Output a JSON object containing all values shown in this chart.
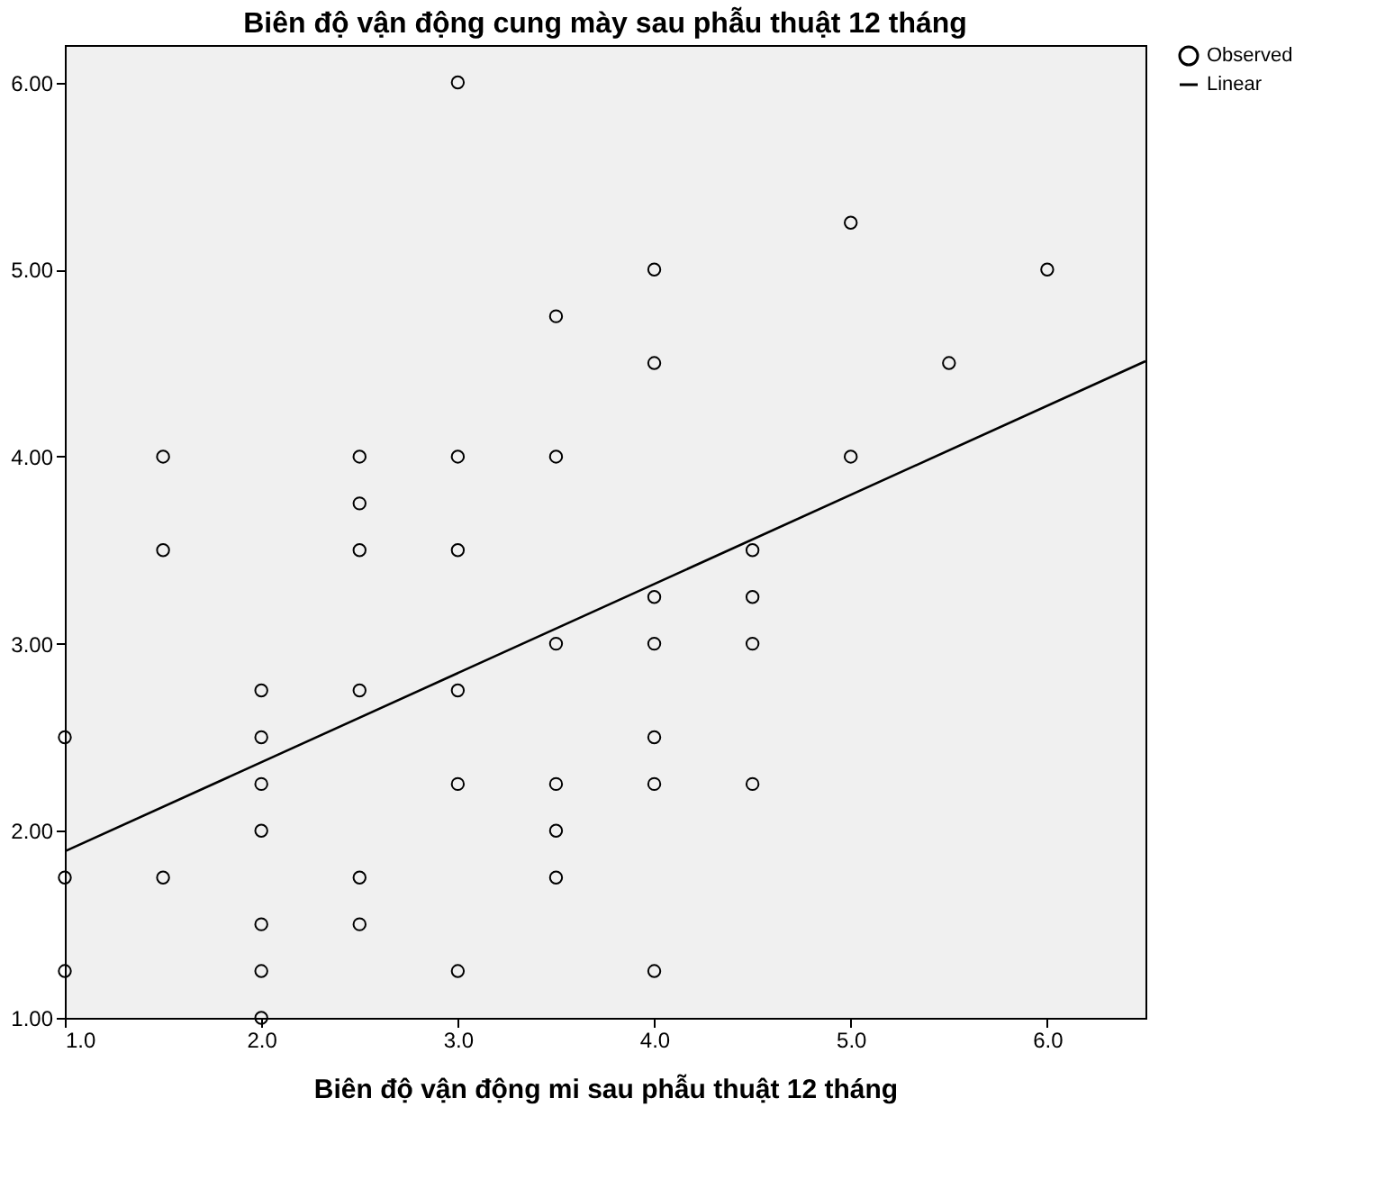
{
  "chart_data": {
    "type": "scatter",
    "title": "Biên độ vận động cung mày sau phẫu thuật 12 tháng",
    "xlabel": "Biên độ vận động mi sau phẫu thuật 12 tháng",
    "xlim": [
      1.0,
      6.5
    ],
    "ylim": [
      1.0,
      6.2
    ],
    "xticks": [
      {
        "value": 1,
        "label": "1.0"
      },
      {
        "value": 2,
        "label": "2.0"
      },
      {
        "value": 3,
        "label": "3.0"
      },
      {
        "value": 4,
        "label": "4.0"
      },
      {
        "value": 5,
        "label": "5.0"
      },
      {
        "value": 6,
        "label": "6.0"
      }
    ],
    "yticks": [
      {
        "value": 1,
        "label": "1.00"
      },
      {
        "value": 2,
        "label": "2.00"
      },
      {
        "value": 3,
        "label": "3.00"
      },
      {
        "value": 4,
        "label": "4.00"
      },
      {
        "value": 5,
        "label": "5.00"
      },
      {
        "value": 6,
        "label": "6.00"
      }
    ],
    "grid": false,
    "legend": "top right",
    "marker": "circle",
    "series": [
      {
        "name": "Observed",
        "color": "#000000",
        "x": [
          1,
          1,
          1,
          1.5,
          1.5,
          1.5,
          2,
          2,
          2,
          2,
          2,
          2,
          2,
          2.5,
          2.5,
          2.5,
          2.5,
          2.5,
          2.5,
          3,
          3,
          3,
          3,
          3,
          3,
          3.5,
          3.5,
          3.5,
          3.5,
          3.5,
          3.5,
          4,
          4,
          4,
          4,
          4,
          4,
          4,
          4.5,
          4.5,
          4.5,
          4.5,
          5,
          5,
          5.5,
          6
        ],
        "values": [
          2.5,
          1.75,
          1.25,
          4.0,
          3.5,
          1.75,
          2.75,
          2.5,
          2.25,
          2.0,
          1.5,
          1.25,
          1.0,
          4.0,
          3.75,
          3.5,
          2.75,
          1.75,
          1.5,
          6.0,
          4.0,
          3.5,
          2.75,
          2.25,
          1.25,
          4.75,
          4.0,
          3.0,
          2.25,
          2.0,
          1.75,
          5.0,
          4.5,
          3.25,
          3.0,
          2.5,
          2.25,
          1.25,
          3.5,
          3.25,
          3.0,
          2.25,
          5.25,
          4.0,
          4.5,
          5.0
        ]
      },
      {
        "name": "Linear",
        "type": "line",
        "color": "#000000",
        "line_style": "solid",
        "marker": "none",
        "x": [
          1.0,
          6.5
        ],
        "values": [
          1.89,
          4.51
        ]
      }
    ]
  }
}
